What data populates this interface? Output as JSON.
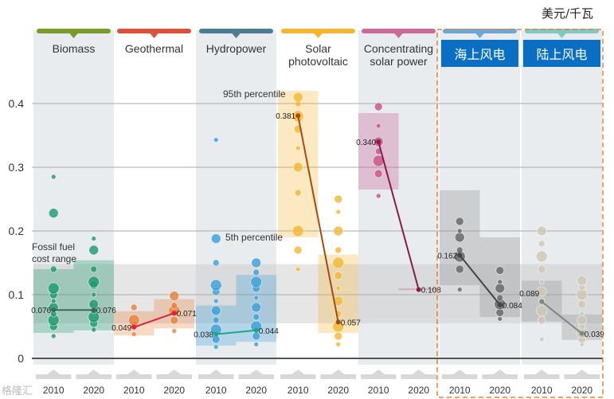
{
  "unit_label": "美元/千瓦",
  "watermark": "格隆汇",
  "chart_data": {
    "type": "scatter",
    "ylim": [
      0,
      0.42
    ],
    "yticks": [
      0,
      0.1,
      0.2,
      0.3,
      0.4
    ],
    "ytick_labels": [
      "0",
      "0.1",
      "0.2",
      "0.3",
      "0.4"
    ],
    "grid": true,
    "years": [
      "2010",
      "2020"
    ],
    "fossil_fuel_range": {
      "label": "Fossil fuel cost range",
      "low": 0.055,
      "high": 0.148
    },
    "annotations": {
      "p95": "95th percentile",
      "p5": "5th percentile"
    },
    "technologies": [
      {
        "name": "Biomass",
        "color": "#7a9a2a",
        "dot": "#1a9a6e",
        "y2010": {
          "median": 0.076,
          "p5": 0.04,
          "p95": 0.14,
          "points": [
            0.035,
            0.05,
            0.06,
            0.07,
            0.08,
            0.09,
            0.1,
            0.11,
            0.14,
            0.228,
            0.285
          ]
        },
        "y2020": {
          "median": 0.076,
          "p5": 0.044,
          "p95": 0.154,
          "points": [
            0.045,
            0.055,
            0.065,
            0.075,
            0.085,
            0.1,
            0.115,
            0.12,
            0.14,
            0.17,
            0.188
          ]
        }
      },
      {
        "name": "Geothermal",
        "color": "#d9533c",
        "dot": "#e8803a",
        "line": "#e0203a",
        "y2010": {
          "median": 0.049,
          "p5": 0.036,
          "p95": 0.074,
          "points": [
            0.038,
            0.052,
            0.06,
            0.08
          ]
        },
        "y2020": {
          "median": 0.071,
          "p5": 0.047,
          "p95": 0.093,
          "points": [
            0.043,
            0.06,
            0.075,
            0.083,
            0.098
          ]
        }
      },
      {
        "name": "Hydropower",
        "color": "#4e7d93",
        "dot": "#3aa0d8",
        "line": "#1aa88a",
        "y2010": {
          "median": 0.038,
          "p5": 0.02,
          "p95": 0.083,
          "points": [
            0.018,
            0.03,
            0.045,
            0.06,
            0.075,
            0.09,
            0.105,
            0.115,
            0.15,
            0.188,
            0.343
          ]
        },
        "y2020": {
          "median": 0.044,
          "p5": 0.026,
          "p95": 0.131,
          "points": [
            0.022,
            0.035,
            0.05,
            0.065,
            0.08,
            0.095,
            0.11,
            0.12,
            0.135,
            0.15
          ]
        }
      },
      {
        "name": "Solar photovoltaic",
        "color": "#f5b731",
        "dot": "#f5b731",
        "line": "#a84a10",
        "y2010": {
          "median": 0.381,
          "p5": 0.19,
          "p95": 0.42,
          "points": [
            0.14,
            0.17,
            0.2,
            0.26,
            0.3,
            0.33,
            0.36,
            0.38,
            0.4,
            0.41
          ]
        },
        "y2020": {
          "median": 0.057,
          "p5": 0.04,
          "p95": 0.163,
          "points": [
            0.022,
            0.035,
            0.05,
            0.07,
            0.09,
            0.11,
            0.13,
            0.15,
            0.17,
            0.2,
            0.23,
            0.25
          ]
        }
      },
      {
        "name": "Concentrating solar power",
        "color": "#cc6b9b",
        "dot": "#c8528a",
        "line": "#8a1a4a",
        "y2010": {
          "median": 0.34,
          "p5": 0.265,
          "p95": 0.385,
          "points": [
            0.255,
            0.29,
            0.31,
            0.325,
            0.34,
            0.365,
            0.395
          ]
        },
        "y2020": {
          "median": 0.108,
          "p5": 0.107,
          "p95": 0.11,
          "points": [
            0.108
          ]
        }
      },
      {
        "name": "海上风电",
        "color": "#6aa8dc",
        "dot": "#666666",
        "line": "#444",
        "y2010": {
          "median": 0.162,
          "p5": 0.115,
          "p95": 0.264,
          "points": [
            0.108,
            0.14,
            0.16,
            0.17,
            0.19,
            0.2,
            0.215
          ]
        },
        "y2020": {
          "median": 0.084,
          "p5": 0.065,
          "p95": 0.19,
          "points": [
            0.062,
            0.072,
            0.085,
            0.095,
            0.11,
            0.12,
            0.138
          ]
        }
      },
      {
        "name": "陆上风电",
        "color": "#7ecac8",
        "dot": "#cfc8b4",
        "line": "#7a8a80",
        "y2010": {
          "median": 0.089,
          "p5": 0.058,
          "p95": 0.122,
          "points": [
            0.03,
            0.06,
            0.075,
            0.09,
            0.105,
            0.12,
            0.14,
            0.16,
            0.18,
            0.2
          ]
        },
        "y2020": {
          "median": 0.039,
          "p5": 0.029,
          "p95": 0.069,
          "points": [
            0.022,
            0.03,
            0.04,
            0.05,
            0.06,
            0.07,
            0.085,
            0.1,
            0.112,
            0.122
          ]
        }
      }
    ]
  }
}
